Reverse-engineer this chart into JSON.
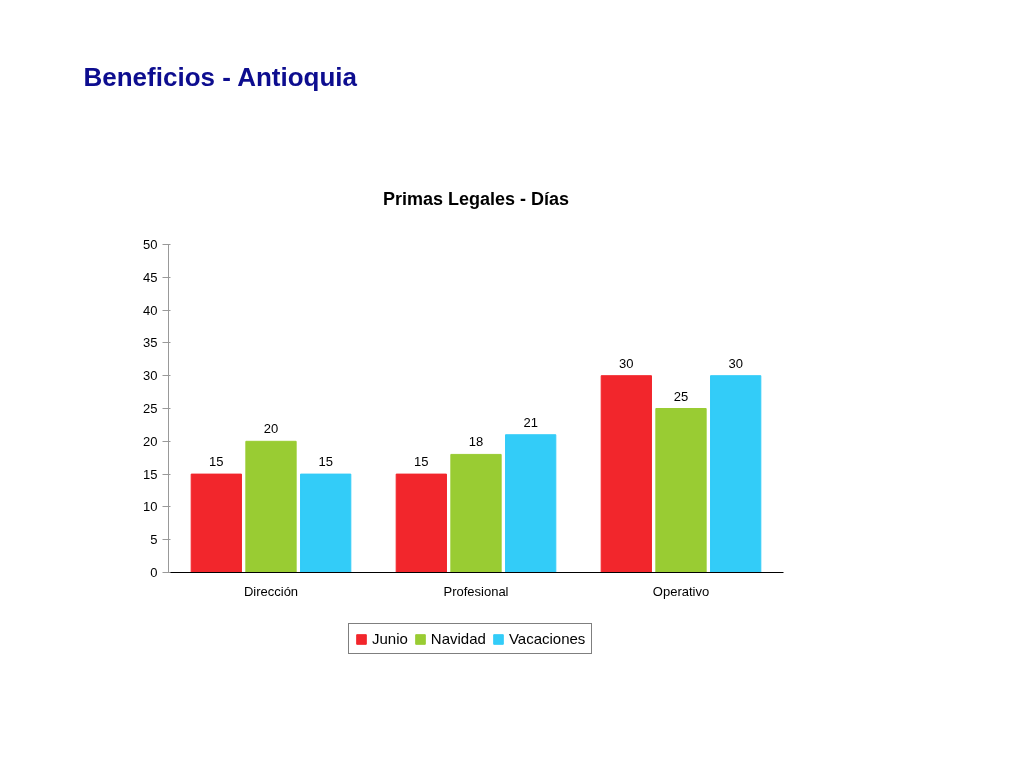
{
  "chart_data": {
    "type": "bar",
    "title": "Beneficios - Antioquia",
    "subtitle": "Primas Legales - Días",
    "categories": [
      "Dirección",
      "Profesional",
      "Operativo"
    ],
    "series": [
      {
        "name": "Junio",
        "color": "#f2262c",
        "values": [
          15,
          15,
          30
        ]
      },
      {
        "name": "Navidad",
        "color": "#99cc33",
        "values": [
          20,
          18,
          25
        ]
      },
      {
        "name": "Vacaciones",
        "color": "#33ccf8",
        "values": [
          15,
          21,
          30
        ]
      }
    ],
    "ylim": [
      0,
      50
    ],
    "yticks": [
      0,
      5,
      10,
      15,
      20,
      25,
      30,
      35,
      40,
      45,
      50
    ],
    "data_labels": true,
    "legend": "bottom"
  }
}
